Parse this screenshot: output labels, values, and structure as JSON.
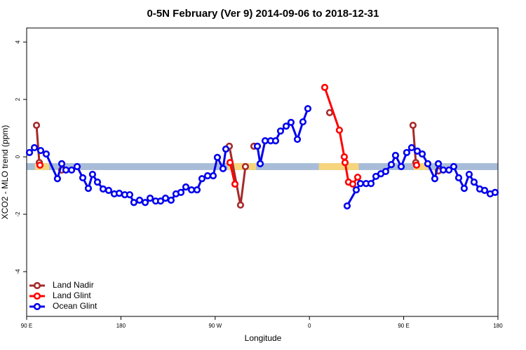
{
  "chart_data": {
    "type": "line",
    "title": "0-5N February (Ver 9)   2014-09-06 to 2018-12-31",
    "xlabel": "Longitude",
    "ylabel": "XCO2 - MLO trend (ppm)",
    "xlim": [
      90,
      540
    ],
    "xticks": [
      {
        "value": 90,
        "label": "90 E"
      },
      {
        "value": 180,
        "label": "180"
      },
      {
        "value": 270,
        "label": "90 W"
      },
      {
        "value": 360,
        "label": "0"
      },
      {
        "value": 450,
        "label": "90 E"
      },
      {
        "value": 540,
        "label": "180"
      }
    ],
    "ylim": [
      -5.56,
      4.49
    ],
    "yticks": [
      -4,
      -2,
      0,
      2,
      4
    ],
    "legend": "bottom-left",
    "band": {
      "ylim": [
        -0.46,
        -0.22
      ],
      "color": "#a8bcd8"
    },
    "land": {
      "color": "#f7d57d",
      "ranges": [
        [
          98,
          111.4
        ],
        [
          282,
          309
        ],
        [
          369,
          407
        ],
        [
          459.6,
          473
        ]
      ]
    },
    "series": [
      {
        "name": "Land Nadir",
        "color": "#a52a2a",
        "x": [
          99.4,
          102.1,
          null,
          123.5,
          null,
          283.5,
          294.2,
          298.9,
          null,
          307.0,
          null,
          379.3,
          null,
          458.9,
          461.6,
          null,
          483.1
        ],
        "values": [
          1.1,
          -0.2,
          null,
          -0.46,
          null,
          0.37,
          -1.68,
          -0.34,
          null,
          0.37,
          null,
          1.54,
          null,
          1.1,
          -0.2,
          null,
          -0.49
        ]
      },
      {
        "name": "Land Glint",
        "color": "#ff0000",
        "x": [
          102.7,
          null,
          284.2,
          288.9,
          null,
          374.6,
          388.6,
          393.3,
          394.0,
          397.3,
          401.4,
          406.1,
          null,
          462.3
        ],
        "values": [
          -0.29,
          null,
          -0.2,
          -0.95,
          null,
          2.42,
          0.93,
          0.0,
          -0.2,
          -0.88,
          -0.95,
          -0.71,
          null,
          -0.29
        ]
      },
      {
        "name": "Ocean Glint",
        "color": "#0000ee",
        "x": [
          92.7,
          97.4,
          103.4,
          108.7,
          119.4,
          123.5,
          127.5,
          132.9,
          138.2,
          143.6,
          148.9,
          152.9,
          157.6,
          163.0,
          168.3,
          173.7,
          178.4,
          183.7,
          188.4,
          192.4,
          197.8,
          203.2,
          207.9,
          213.2,
          217.9,
          222.6,
          227.9,
          232.6,
          237.3,
          242.0,
          247.4,
          252.7,
          257.4,
          262.8,
          268.1,
          272.1,
          277.5,
          280.2,
          null,
          310.3,
          313.0,
          317.7,
          323.0,
          327.7,
          332.4,
          337.8,
          342.4,
          348.5,
          353.8,
          358.5,
          null,
          396.0,
          404.7,
          408.7,
          414.1,
          418.8,
          423.5,
          428.2,
          432.8,
          438.2,
          442.2,
          447.6,
          452.9,
          457.6,
          463.0,
          467.7,
          473.0,
          479.7,
          483.1,
          487.8,
          493.2,
          497.8,
          502.5,
          507.8,
          512.5,
          517.2,
          522.6,
          527.3,
          532.6,
          537.3
        ],
        "values": [
          0.15,
          0.32,
          0.22,
          0.1,
          -0.76,
          -0.24,
          -0.46,
          -0.46,
          -0.34,
          -0.73,
          -1.1,
          -0.61,
          -0.88,
          -1.12,
          -1.17,
          -1.29,
          -1.27,
          -1.32,
          -1.32,
          -1.59,
          -1.51,
          -1.59,
          -1.44,
          -1.54,
          -1.54,
          -1.44,
          -1.51,
          -1.29,
          -1.24,
          -1.05,
          -1.15,
          -1.15,
          -0.76,
          -0.66,
          -0.66,
          -0.02,
          -0.41,
          0.27,
          null,
          0.37,
          -0.24,
          0.56,
          0.56,
          0.56,
          0.9,
          1.07,
          1.2,
          0.61,
          1.22,
          1.68,
          null,
          -1.71,
          -1.15,
          -0.93,
          -0.93,
          -0.93,
          -0.68,
          -0.59,
          -0.51,
          -0.27,
          0.05,
          -0.34,
          0.15,
          0.32,
          0.2,
          0.1,
          -0.24,
          -0.76,
          -0.24,
          -0.46,
          -0.46,
          -0.34,
          -0.73,
          -1.1,
          -0.61,
          -0.88,
          -1.12,
          -1.17,
          -1.29,
          -1.24
        ]
      }
    ]
  }
}
